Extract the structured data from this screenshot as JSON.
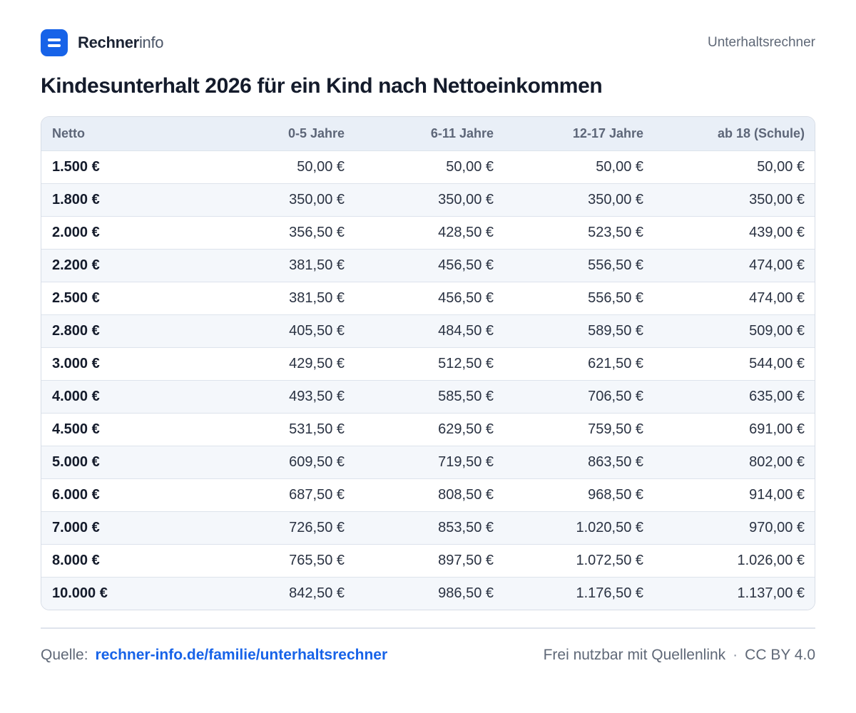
{
  "brand": {
    "name_strong": "Rechner",
    "name_light": "info",
    "icon": "menu-lines-icon",
    "color": "#1763e8"
  },
  "header": {
    "section": "Unterhaltsrechner"
  },
  "title": "Kindesunterhalt 2026 für ein Kind nach Nettoeinkommen",
  "table": {
    "columns": [
      "Netto",
      "0-5 Jahre",
      "6-11 Jahre",
      "12-17 Jahre",
      "ab 18 (Schule)"
    ],
    "rows": [
      [
        "1.500 €",
        "50,00 €",
        "50,00 €",
        "50,00 €",
        "50,00 €"
      ],
      [
        "1.800 €",
        "350,00 €",
        "350,00 €",
        "350,00 €",
        "350,00 €"
      ],
      [
        "2.000 €",
        "356,50 €",
        "428,50 €",
        "523,50 €",
        "439,00 €"
      ],
      [
        "2.200 €",
        "381,50 €",
        "456,50 €",
        "556,50 €",
        "474,00 €"
      ],
      [
        "2.500 €",
        "381,50 €",
        "456,50 €",
        "556,50 €",
        "474,00 €"
      ],
      [
        "2.800 €",
        "405,50 €",
        "484,50 €",
        "589,50 €",
        "509,00 €"
      ],
      [
        "3.000 €",
        "429,50 €",
        "512,50 €",
        "621,50 €",
        "544,00 €"
      ],
      [
        "4.000 €",
        "493,50 €",
        "585,50 €",
        "706,50 €",
        "635,00 €"
      ],
      [
        "4.500 €",
        "531,50 €",
        "629,50 €",
        "759,50 €",
        "691,00 €"
      ],
      [
        "5.000 €",
        "609,50 €",
        "719,50 €",
        "863,50 €",
        "802,00 €"
      ],
      [
        "6.000 €",
        "687,50 €",
        "808,50 €",
        "968,50 €",
        "914,00 €"
      ],
      [
        "7.000 €",
        "726,50 €",
        "853,50 €",
        "1.020,50 €",
        "970,00 €"
      ],
      [
        "8.000 €",
        "765,50 €",
        "897,50 €",
        "1.072,50 €",
        "1.026,00 €"
      ],
      [
        "10.000 €",
        "842,50 €",
        "986,50 €",
        "1.176,50 €",
        "1.137,00 €"
      ]
    ]
  },
  "footer": {
    "source_label": "Quelle:",
    "source_link": "rechner-info.de/familie/unterhaltsrechner",
    "license_text": "Frei nutzbar mit Quellenlink",
    "separator": "·",
    "license": "CC BY 4.0"
  }
}
